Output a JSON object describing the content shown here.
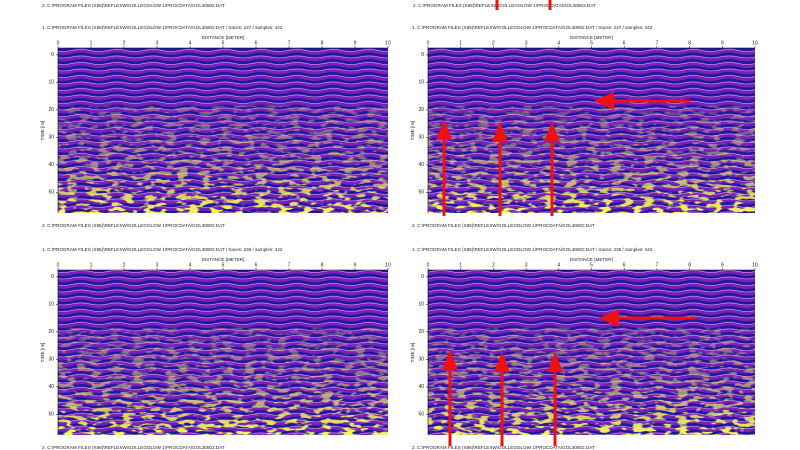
{
  "top_notes": [
    "2. C:\\PROGRAM FILES (X86)\\REFLEXW\\GOLLEGOLOW 1\\PROCDATA\\GOL30802.DAT",
    "2. C:\\PROGRAM FILES (X86)\\REFLEXW\\GOLLEGOLOW 1\\PROCDATA\\GOL30802.DAT"
  ],
  "panels": [
    {
      "header": "1. C:\\PROGRAM FILES (X86)\\REFLEXW\\GOLLEGOLOW 1\\PROCDATA\\GOL30802.DAT / traces: 237 / samples: 442",
      "axis_title": "DISTANCE [METER]",
      "xticks": [
        0,
        1,
        2,
        3,
        4,
        5,
        6,
        7,
        8,
        9,
        10
      ],
      "yticks": [
        0,
        10,
        20,
        30,
        40,
        50
      ],
      "y_axis_title": "TIME [ns]",
      "footer": "2. C:\\PROGRAM FILES (X86)\\REFLEXW\\GOLLEGOLOW 1\\PROCDATA\\GOL30802.DAT"
    },
    {
      "header": "1. C:\\PROGRAM FILES (X86)\\REFLEXW\\GOLLEGOLOW 1\\PROCDATA\\GOL30802.DAT / traces: 237 / samples: 442",
      "axis_title": "DISTANCE [METER]",
      "xticks": [
        0,
        1,
        2,
        3,
        4,
        5,
        6,
        7,
        8,
        9,
        10
      ],
      "yticks": [
        0,
        10,
        20,
        30,
        40,
        50
      ],
      "y_axis_title": "TIME [ns]",
      "footer": "2. C:\\PROGRAM FILES (X86)\\REFLEXW\\GOLLEGOLOW 1\\PROCDATA\\GOL30802.DAT"
    },
    {
      "header": "1. C:\\PROGRAM FILES (X86)\\REFLEXW\\GOLLEGOLOW 1\\PROCDATA\\GOL30802.DAT / traces: 236 / samples: 442",
      "axis_title": "DISTANCE [METER]",
      "xticks": [
        0,
        1,
        2,
        3,
        4,
        5,
        6,
        7,
        8,
        9,
        10
      ],
      "yticks": [
        0,
        10,
        20,
        30,
        40,
        50
      ],
      "y_axis_title": "TIME [ns]",
      "footer": "2. C:\\PROGRAM FILES (X86)\\REFLEXW\\GOLLEGOLOW 1\\PROCDATA\\GOL30802.DAT"
    },
    {
      "header": "1. C:\\PROGRAM FILES (X86)\\REFLEXW\\GOLLEGOLOW 1\\PROCDATA\\GOL30802.DAT / traces: 236 / samples: 442",
      "axis_title": "DISTANCE [METER]",
      "xticks": [
        0,
        1,
        2,
        3,
        4,
        5,
        6,
        7,
        8,
        9,
        10
      ],
      "yticks": [
        0,
        10,
        20,
        30,
        40,
        50
      ],
      "y_axis_title": "TIME [ns]",
      "footer": "2. C:\\PROGRAM FILES (X86)\\REFLEXW\\GOLLEGOLOW 1\\PROCDATA\\GOL30802.DAT"
    }
  ]
}
